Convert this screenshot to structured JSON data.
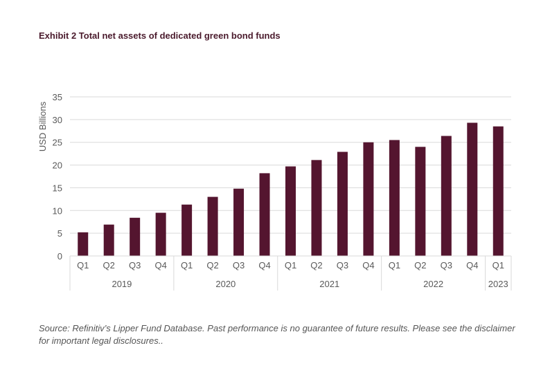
{
  "title": "Exhibit 2 Total net assets of dedicated green bond funds",
  "source": "Source: Refinitiv’s Lipper Fund Database. Past performance is no guarantee of future results. Please see the disclaimer for important legal disclosures..",
  "chart_data": {
    "type": "bar",
    "title": "Exhibit 2 Total net assets of dedicated green bond funds",
    "ylabel": "USD Billions",
    "xlabel": "",
    "ylim": [
      0,
      35
    ],
    "yticks": [
      0,
      5,
      10,
      15,
      20,
      25,
      30,
      35
    ],
    "grid": true,
    "bar_color": "#54152f",
    "categories": [
      "Q1",
      "Q2",
      "Q3",
      "Q4",
      "Q1",
      "Q2",
      "Q3",
      "Q4",
      "Q1",
      "Q2",
      "Q3",
      "Q4",
      "Q1",
      "Q2",
      "Q3",
      "Q4",
      "Q1"
    ],
    "groups": [
      {
        "label": "2019",
        "count": 4
      },
      {
        "label": "2020",
        "count": 4
      },
      {
        "label": "2021",
        "count": 4
      },
      {
        "label": "2022",
        "count": 4
      },
      {
        "label": "2023",
        "count": 1
      }
    ],
    "values": [
      5.2,
      6.9,
      8.4,
      9.5,
      11.3,
      13.0,
      14.8,
      18.2,
      19.7,
      21.1,
      22.9,
      25.0,
      25.5,
      24.0,
      26.4,
      29.3,
      28.5
    ]
  }
}
